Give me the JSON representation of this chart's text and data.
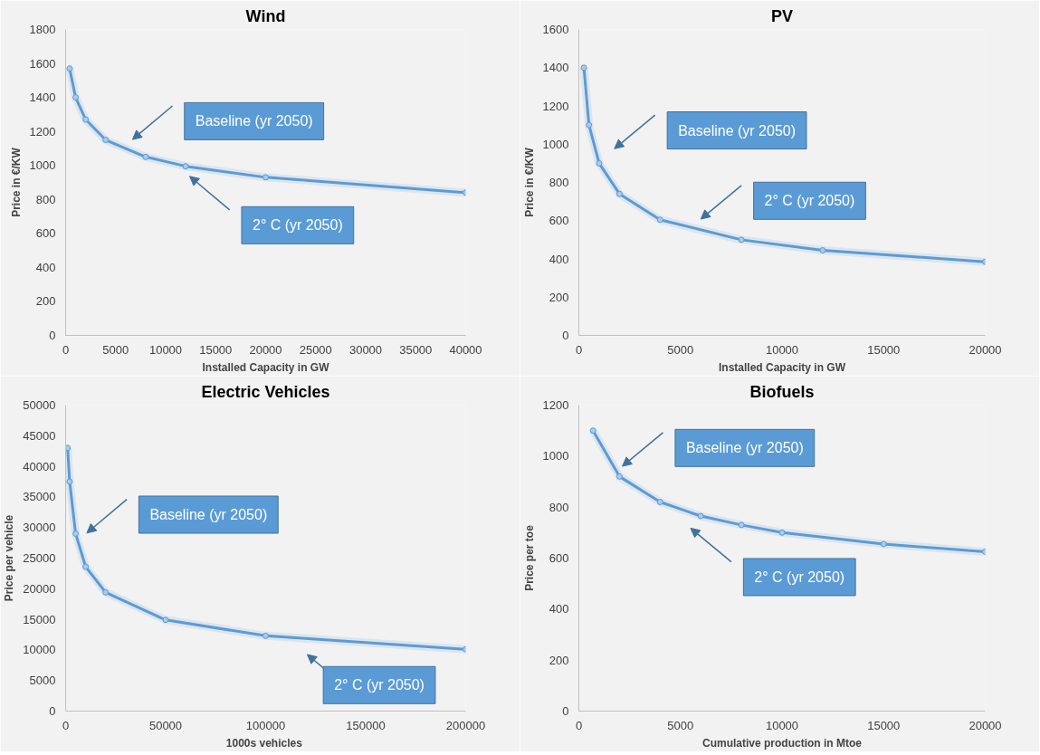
{
  "chart_data": [
    {
      "type": "line",
      "title": "Wind",
      "xlabel": "Installed Capacity in GW",
      "ylabel": "Price in €/KW",
      "marker": "circle",
      "grid": false,
      "x": [
        400,
        1000,
        2000,
        4000,
        8000,
        12000,
        20000,
        40000
      ],
      "series": [
        {
          "color": "#5b9bd5",
          "values": [
            1570,
            1400,
            1270,
            1150,
            1050,
            995,
            930,
            840
          ]
        }
      ],
      "xlim": [
        0,
        40000
      ],
      "xticks": [
        0,
        5000,
        10000,
        15000,
        20000,
        25000,
        30000,
        35000,
        40000
      ],
      "ylim": [
        0,
        1800
      ],
      "yticks": [
        0,
        200,
        400,
        600,
        800,
        1000,
        1200,
        1400,
        1600,
        1800
      ],
      "annotations": [
        "Baseline (yr 2050)",
        "2° C (yr 2050)"
      ]
    },
    {
      "type": "line",
      "title": "PV",
      "xlabel": "Installed Capacity in GW",
      "ylabel": "Price in €/KW",
      "marker": "circle",
      "grid": false,
      "x": [
        250,
        500,
        1000,
        2000,
        4000,
        8000,
        12000,
        20000
      ],
      "series": [
        {
          "color": "#5b9bd5",
          "values": [
            1400,
            1100,
            900,
            740,
            605,
            500,
            445,
            385
          ]
        }
      ],
      "xlim": [
        0,
        20000
      ],
      "xticks": [
        0,
        5000,
        10000,
        15000,
        20000
      ],
      "ylim": [
        0,
        1600
      ],
      "yticks": [
        0,
        200,
        400,
        600,
        800,
        1000,
        1200,
        1400,
        1600
      ],
      "annotations": [
        "Baseline (yr 2050)",
        "2° C (yr 2050)"
      ]
    },
    {
      "type": "line",
      "title": "Electric Vehicles",
      "xlabel": "1000s  vehicles",
      "ylabel": "Price per vehicle",
      "marker": "circle",
      "grid": false,
      "x": [
        1000,
        2000,
        5000,
        10000,
        20000,
        50000,
        100000,
        200000
      ],
      "series": [
        {
          "color": "#5b9bd5",
          "values": [
            43000,
            37500,
            29000,
            23600,
            19400,
            14900,
            12300,
            10100
          ]
        }
      ],
      "xlim": [
        0,
        200000
      ],
      "xticks": [
        0,
        50000,
        100000,
        150000,
        200000
      ],
      "ylim": [
        0,
        50000
      ],
      "yticks": [
        0,
        5000,
        10000,
        15000,
        20000,
        25000,
        30000,
        35000,
        40000,
        45000,
        50000
      ],
      "annotations": [
        "Baseline (yr 2050)",
        "2° C (yr 2050)"
      ]
    },
    {
      "type": "line",
      "title": "Biofuels",
      "xlabel": "Cumulative production in Mtoe",
      "ylabel": "Price per toe",
      "marker": "circle",
      "grid": false,
      "x": [
        700,
        2000,
        4000,
        6000,
        8000,
        10000,
        15000,
        20000
      ],
      "series": [
        {
          "color": "#5b9bd5",
          "values": [
            1100,
            920,
            820,
            765,
            730,
            700,
            655,
            625
          ]
        }
      ],
      "xlim": [
        0,
        20000
      ],
      "xticks": [
        0,
        5000,
        10000,
        15000,
        20000
      ],
      "ylim": [
        0,
        1200
      ],
      "yticks": [
        0,
        200,
        400,
        600,
        800,
        1000,
        1200
      ],
      "annotations": [
        "Baseline (yr 2050)",
        "2° C (yr 2050)"
      ]
    }
  ]
}
